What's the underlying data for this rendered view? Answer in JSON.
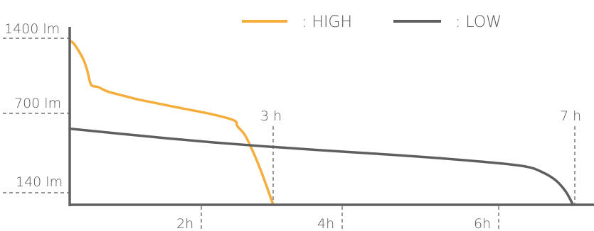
{
  "chart_data": {
    "type": "line",
    "title": "",
    "xlabel": "",
    "ylabel": "",
    "xlim": [
      0,
      7.1
    ],
    "ylim": [
      0,
      1400
    ],
    "y_ticks": [
      {
        "value": 1400,
        "label": "1400 lm"
      },
      {
        "value": 700,
        "label": "700 lm"
      },
      {
        "value": 140,
        "label": "140 lm"
      }
    ],
    "x_ticks": [
      {
        "value": 2,
        "label": "2h"
      },
      {
        "value": 4,
        "label": "4h"
      },
      {
        "value": 6,
        "label": "6h"
      }
    ],
    "annotations": [
      {
        "x": 2.85,
        "label": "3 h"
      },
      {
        "x": 7.05,
        "label": "7 h"
      }
    ],
    "legend": {
      "placement": "top"
    },
    "series": [
      {
        "name": ": HIGH",
        "color": "#f5ae3c",
        "x": [
          0,
          0.05,
          0.12,
          0.2,
          0.25,
          0.3,
          0.4,
          0.5,
          0.6,
          0.8,
          1.0,
          1.5,
          2.0,
          2.3,
          2.35,
          2.45,
          2.55,
          2.65,
          2.75,
          2.85
        ],
        "y": [
          1380,
          1360,
          1300,
          1210,
          1120,
          1010,
          990,
          960,
          940,
          910,
          880,
          820,
          760,
          710,
          660,
          590,
          470,
          330,
          170,
          0
        ]
      },
      {
        "name": ": LOW",
        "color": "#5f5f5f",
        "x": [
          0,
          1,
          2,
          3,
          4,
          5,
          6,
          6.4,
          6.6,
          6.8,
          6.95,
          7.05
        ],
        "y": [
          640,
          580,
          525,
          480,
          440,
          400,
          350,
          320,
          280,
          210,
          110,
          0
        ]
      }
    ]
  }
}
